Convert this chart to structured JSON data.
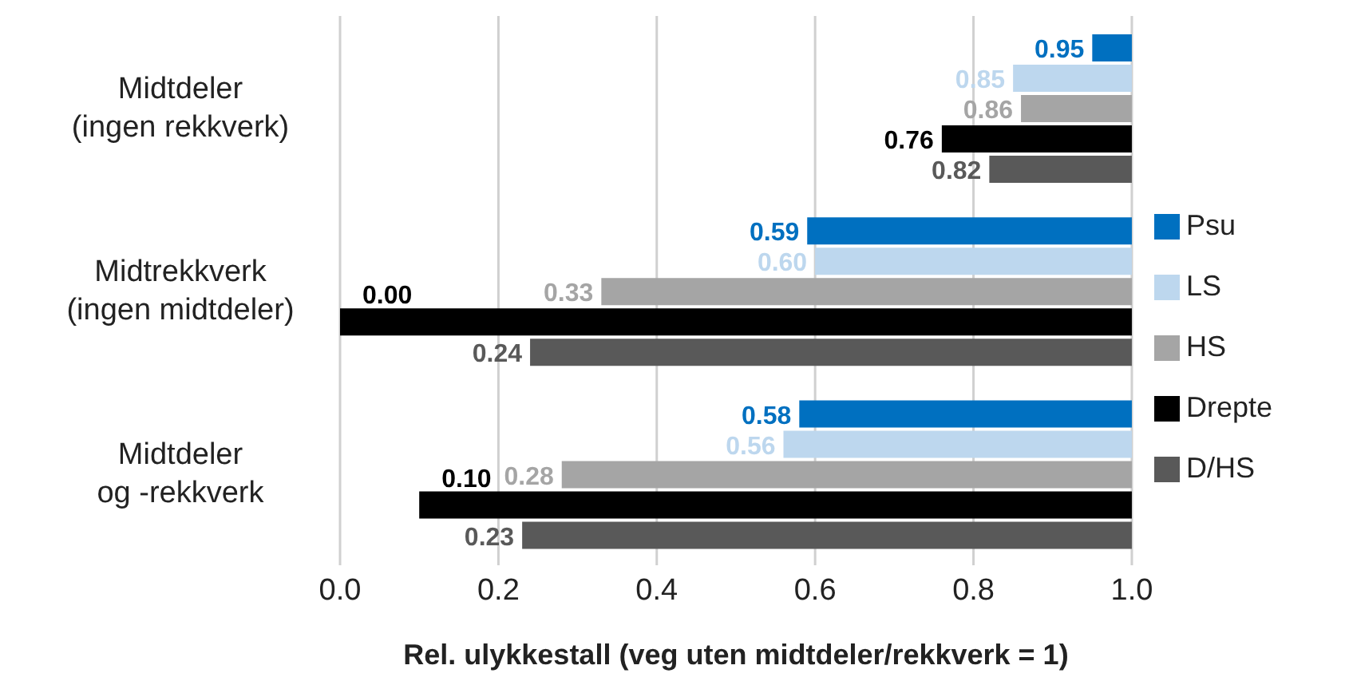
{
  "chart_data": {
    "type": "bar",
    "orientation": "horizontal",
    "categories": [
      "Midtdeler\n(ingen rekkverk)",
      "Midtrekkverk\n(ingen midtdeler)",
      "Midtdeler\nog -rekkverk"
    ],
    "xlabel": "Rel. ulykkestall (veg uten midtdeler/rekkverk = 1)",
    "xlim": [
      0,
      1
    ],
    "xticks": [
      {
        "value": 0,
        "label": "0.0"
      },
      {
        "value": 0.2,
        "label": "0.2"
      },
      {
        "value": 0.4,
        "label": "0.4"
      },
      {
        "value": 0.6,
        "label": "0.6"
      },
      {
        "value": 0.8,
        "label": "0.8"
      },
      {
        "value": 1,
        "label": "1.0"
      }
    ],
    "grid": "x",
    "legend": "right",
    "series": [
      {
        "name": "Psu",
        "color": "#0070c0",
        "base": [
          1,
          1,
          1
        ],
        "values": [
          -0.05,
          -0.41,
          -0.42
        ],
        "value_labels": [
          "0.95",
          "0.59",
          "0.58"
        ]
      },
      {
        "name": "LS",
        "color": "#bdd7ee",
        "base": [
          1,
          1,
          1
        ],
        "values": [
          -0.15,
          -0.4,
          -0.44
        ],
        "value_labels": [
          "0.85",
          "0.60",
          "0.56"
        ]
      },
      {
        "name": "HS",
        "color": "#a5a5a5",
        "base": [
          1,
          1,
          1
        ],
        "values": [
          -0.14,
          -0.67,
          -0.72
        ],
        "value_labels": [
          "0.86",
          "0.33",
          "0.28"
        ]
      },
      {
        "name": "Drepte",
        "color": "#000000",
        "base": [
          1,
          1,
          1
        ],
        "values": [
          -0.24,
          -1.0,
          -0.9
        ],
        "value_labels": [
          "0.76",
          "0.00",
          "0.10"
        ]
      },
      {
        "name": "D/HS",
        "color": "#595959",
        "base": [
          1,
          1,
          1
        ],
        "values": [
          -0.18,
          -0.76,
          -0.77
        ],
        "value_labels": [
          "0.82",
          "0.24",
          "0.23"
        ]
      }
    ]
  }
}
